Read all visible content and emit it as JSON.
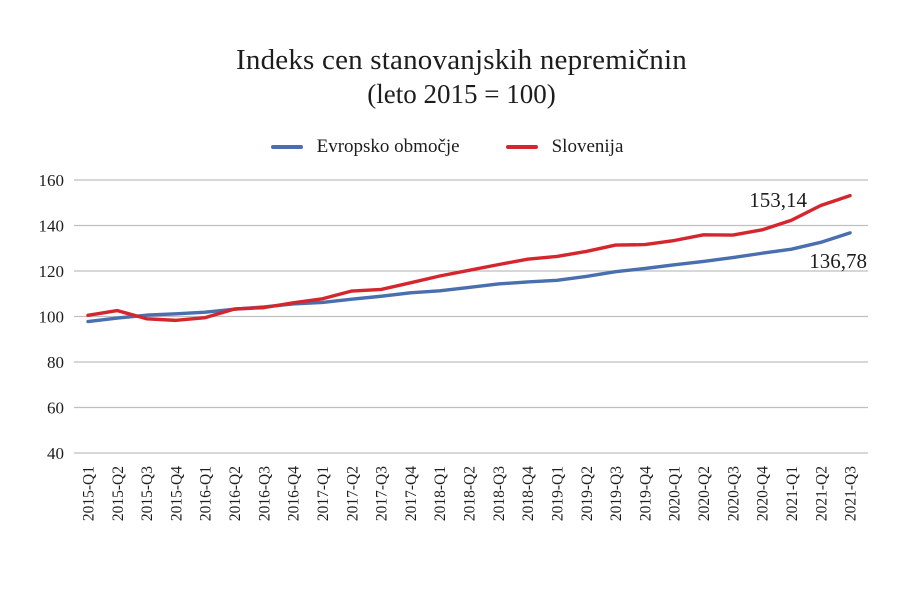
{
  "title": {
    "line1": "Indeks cen stanovanjskih nepremičnin",
    "line2": "(leto 2015 = 100)"
  },
  "legend": [
    {
      "label": "Evropsko območje",
      "color": "#4a6fae"
    },
    {
      "label": "Slovenija",
      "color": "#d5262e"
    }
  ],
  "chart_data": {
    "type": "line",
    "title": "Indeks cen stanovanjskih nepremičnin",
    "subtitle": "(leto 2015 = 100)",
    "xlabel": "",
    "ylabel": "",
    "ylim": [
      40,
      160
    ],
    "yticks": [
      160,
      140,
      120,
      100,
      80,
      60,
      40
    ],
    "grid": "horizontal",
    "gridline_color": "#bfbfbf",
    "text_color": "#1d1d1b",
    "legend_position": "top",
    "categories": [
      "2015-Q1",
      "2015-Q2",
      "2015-Q3",
      "2015-Q4",
      "2016-Q1",
      "2016-Q2",
      "2016-Q3",
      "2016-Q4",
      "2017-Q1",
      "2017-Q2",
      "2017-Q3",
      "2017-Q4",
      "2018-Q1",
      "2018-Q2",
      "2018-Q3",
      "2018-Q4",
      "2019-Q1",
      "2019-Q2",
      "2019-Q3",
      "2019-Q4",
      "2020-Q1",
      "2020-Q2",
      "2020-Q3",
      "2020-Q4",
      "2021-Q1",
      "2021-Q2",
      "2021-Q3"
    ],
    "series": [
      {
        "name": "Evropsko območje",
        "color": "#4a6fae",
        "end_label": "136,78",
        "values": [
          97.8,
          99.3,
          100.6,
          101.2,
          101.9,
          103.2,
          104.2,
          105.5,
          106.2,
          107.6,
          108.9,
          110.4,
          111.3,
          112.8,
          114.3,
          115.2,
          115.9,
          117.6,
          119.7,
          121.1,
          122.7,
          124.2,
          125.9,
          127.8,
          129.6,
          132.6,
          136.78
        ]
      },
      {
        "name": "Slovenija",
        "color": "#d5262e",
        "end_label": "153,14",
        "values": [
          100.5,
          102.6,
          99.0,
          98.3,
          99.5,
          103.3,
          103.9,
          106.0,
          107.8,
          111.2,
          111.9,
          114.8,
          117.8,
          120.3,
          122.8,
          125.2,
          126.4,
          128.6,
          131.4,
          131.6,
          133.4,
          135.9,
          135.8,
          138.1,
          142.3,
          148.8,
          153.14
        ]
      }
    ]
  }
}
